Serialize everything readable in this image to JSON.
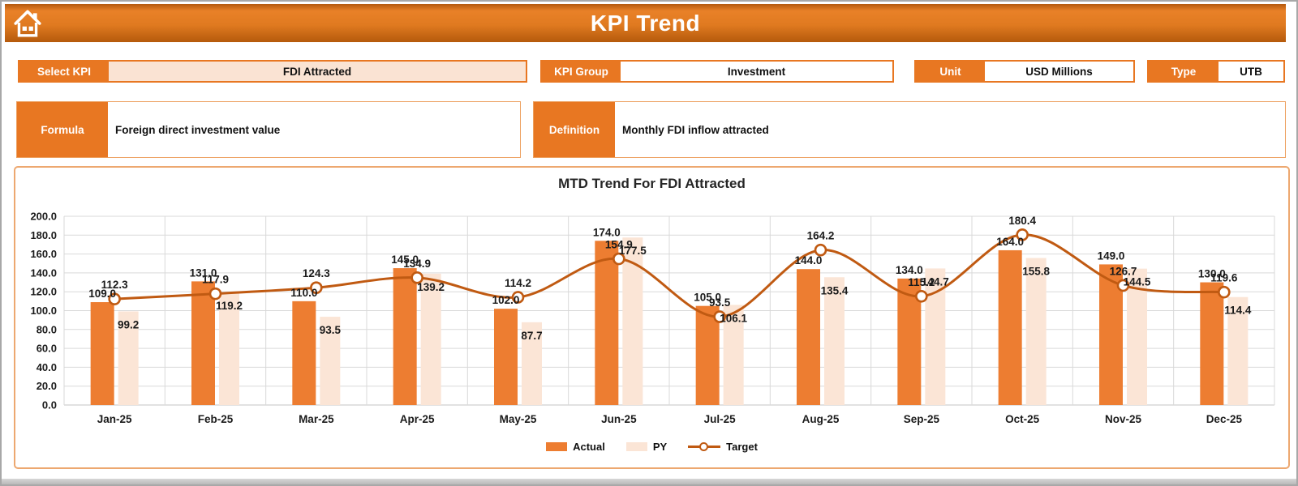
{
  "header": {
    "title": "KPI Trend"
  },
  "filters": {
    "select_kpi": {
      "label": "Select KPI",
      "value": "FDI Attracted"
    },
    "kpi_group": {
      "label": "KPI Group",
      "value": "Investment"
    },
    "unit": {
      "label": "Unit",
      "value": "USD Millions"
    },
    "type": {
      "label": "Type",
      "value": "UTB"
    }
  },
  "details": {
    "formula": {
      "label": "Formula",
      "value": "Foreign direct investment value"
    },
    "definition": {
      "label": "Definition",
      "value": "Monthly FDI inflow attracted"
    }
  },
  "chart_data": {
    "type": "bar+line",
    "title": "MTD Trend For FDI Attracted",
    "categories": [
      "Jan-25",
      "Feb-25",
      "Mar-25",
      "Apr-25",
      "May-25",
      "Jun-25",
      "Jul-25",
      "Aug-25",
      "Sep-25",
      "Oct-25",
      "Nov-25",
      "Dec-25"
    ],
    "series": [
      {
        "name": "Actual",
        "type": "bar",
        "color": "#ED7D31",
        "values": [
          109.0,
          131.0,
          110.0,
          145.0,
          102.0,
          174.0,
          105.0,
          144.0,
          134.0,
          164.0,
          149.0,
          130.0
        ]
      },
      {
        "name": "PY",
        "type": "bar",
        "color": "#FBE5D6",
        "values": [
          99.2,
          119.2,
          93.5,
          139.2,
          87.7,
          177.5,
          106.1,
          135.4,
          144.7,
          155.8,
          144.5,
          114.4
        ]
      },
      {
        "name": "Target",
        "type": "line",
        "color": "#C05A12",
        "marker": "circle",
        "values": [
          112.3,
          117.9,
          124.3,
          134.9,
          114.2,
          154.9,
          93.5,
          164.2,
          115.2,
          180.4,
          126.7,
          119.6
        ]
      }
    ],
    "ylim": [
      0,
      200
    ],
    "ytick_step": 20,
    "grid": true,
    "legend_position": "bottom",
    "label_format": "0.0"
  },
  "colors": {
    "accent": "#E87722",
    "value_fill": "#FAE3D3",
    "grid": "#D9D9D9",
    "label_text": "#1A1A1A",
    "chart_border": "#EDA870"
  }
}
